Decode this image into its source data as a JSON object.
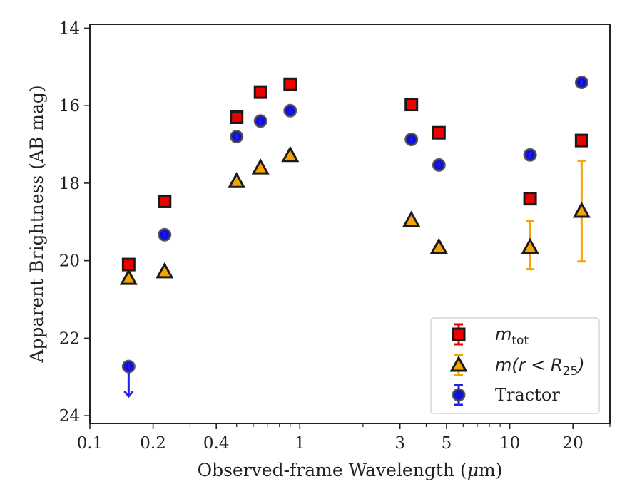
{
  "chart_data": {
    "type": "scatter",
    "xlabel_main": "Observed-frame Wavelength (",
    "xlabel_mu": "μ",
    "xlabel_end": "m)",
    "ylabel": "Apparent Brightness (AB mag)",
    "x_scale": "log",
    "xlim": [
      0.1,
      30
    ],
    "ylim": [
      24.2,
      13.9
    ],
    "y_inverted": true,
    "x_ticks": [
      {
        "value": 0.1,
        "label": "0.1"
      },
      {
        "value": 0.2,
        "label": "0.2"
      },
      {
        "value": 0.4,
        "label": "0.4"
      },
      {
        "value": 1,
        "label": "1"
      },
      {
        "value": 3,
        "label": "3"
      },
      {
        "value": 5,
        "label": "5"
      },
      {
        "value": 10,
        "label": "10"
      },
      {
        "value": 20,
        "label": "20"
      }
    ],
    "x_minor_ticks": [
      0.3,
      0.5,
      0.6,
      0.7,
      0.8,
      0.9,
      2,
      4,
      6,
      7,
      8,
      9,
      30
    ],
    "y_ticks": [
      {
        "value": 14,
        "label": "14"
      },
      {
        "value": 16,
        "label": "16"
      },
      {
        "value": 18,
        "label": "18"
      },
      {
        "value": 20,
        "label": "20"
      },
      {
        "value": 22,
        "label": "22"
      },
      {
        "value": 24,
        "label": "24"
      }
    ],
    "grid": false,
    "legend_position": "lower-right",
    "series": [
      {
        "key": "mtot",
        "name_main": "m",
        "name_sub": "tot",
        "marker": "square",
        "fill": "#ee0000",
        "edge": "#1a1a1a",
        "errcolor": "#ee0000",
        "points": [
          {
            "x": 0.153,
            "y": 20.1
          },
          {
            "x": 0.227,
            "y": 18.47
          },
          {
            "x": 0.5,
            "y": 16.3
          },
          {
            "x": 0.65,
            "y": 15.65
          },
          {
            "x": 0.9,
            "y": 15.45
          },
          {
            "x": 3.4,
            "y": 15.97
          },
          {
            "x": 4.6,
            "y": 16.7
          },
          {
            "x": 12.5,
            "y": 18.4
          },
          {
            "x": 22.0,
            "y": 16.9
          }
        ]
      },
      {
        "key": "mr25",
        "name_main": "m(r < R",
        "name_sub": "25",
        "name_end": ")",
        "marker": "triangle",
        "fill": "#f5a300",
        "edge": "#1a1a1a",
        "errcolor": "#f5a300",
        "points": [
          {
            "x": 0.153,
            "y": 20.45
          },
          {
            "x": 0.227,
            "y": 20.28
          },
          {
            "x": 0.5,
            "y": 17.95
          },
          {
            "x": 0.65,
            "y": 17.6
          },
          {
            "x": 0.9,
            "y": 17.28
          },
          {
            "x": 3.4,
            "y": 18.95
          },
          {
            "x": 4.6,
            "y": 19.65
          },
          {
            "x": 12.5,
            "y": 19.65,
            "err_lo": 18.98,
            "err_hi": 20.22
          },
          {
            "x": 22.0,
            "y": 18.72,
            "err_lo": 17.42,
            "err_hi": 20.02
          }
        ]
      },
      {
        "key": "tractor",
        "name": "Tractor",
        "marker": "circle",
        "fill": "#1010dd",
        "edge": "#444444",
        "errcolor": "#2222ee",
        "points": [
          {
            "x": 0.153,
            "y": 22.73,
            "upper_limit": true,
            "arrow_to": 23.5
          },
          {
            "x": 0.227,
            "y": 19.33
          },
          {
            "x": 0.5,
            "y": 16.8
          },
          {
            "x": 0.65,
            "y": 16.4
          },
          {
            "x": 0.9,
            "y": 16.13
          },
          {
            "x": 3.4,
            "y": 16.87
          },
          {
            "x": 4.6,
            "y": 17.53
          },
          {
            "x": 12.5,
            "y": 17.27
          },
          {
            "x": 22.0,
            "y": 15.4
          }
        ]
      }
    ]
  }
}
